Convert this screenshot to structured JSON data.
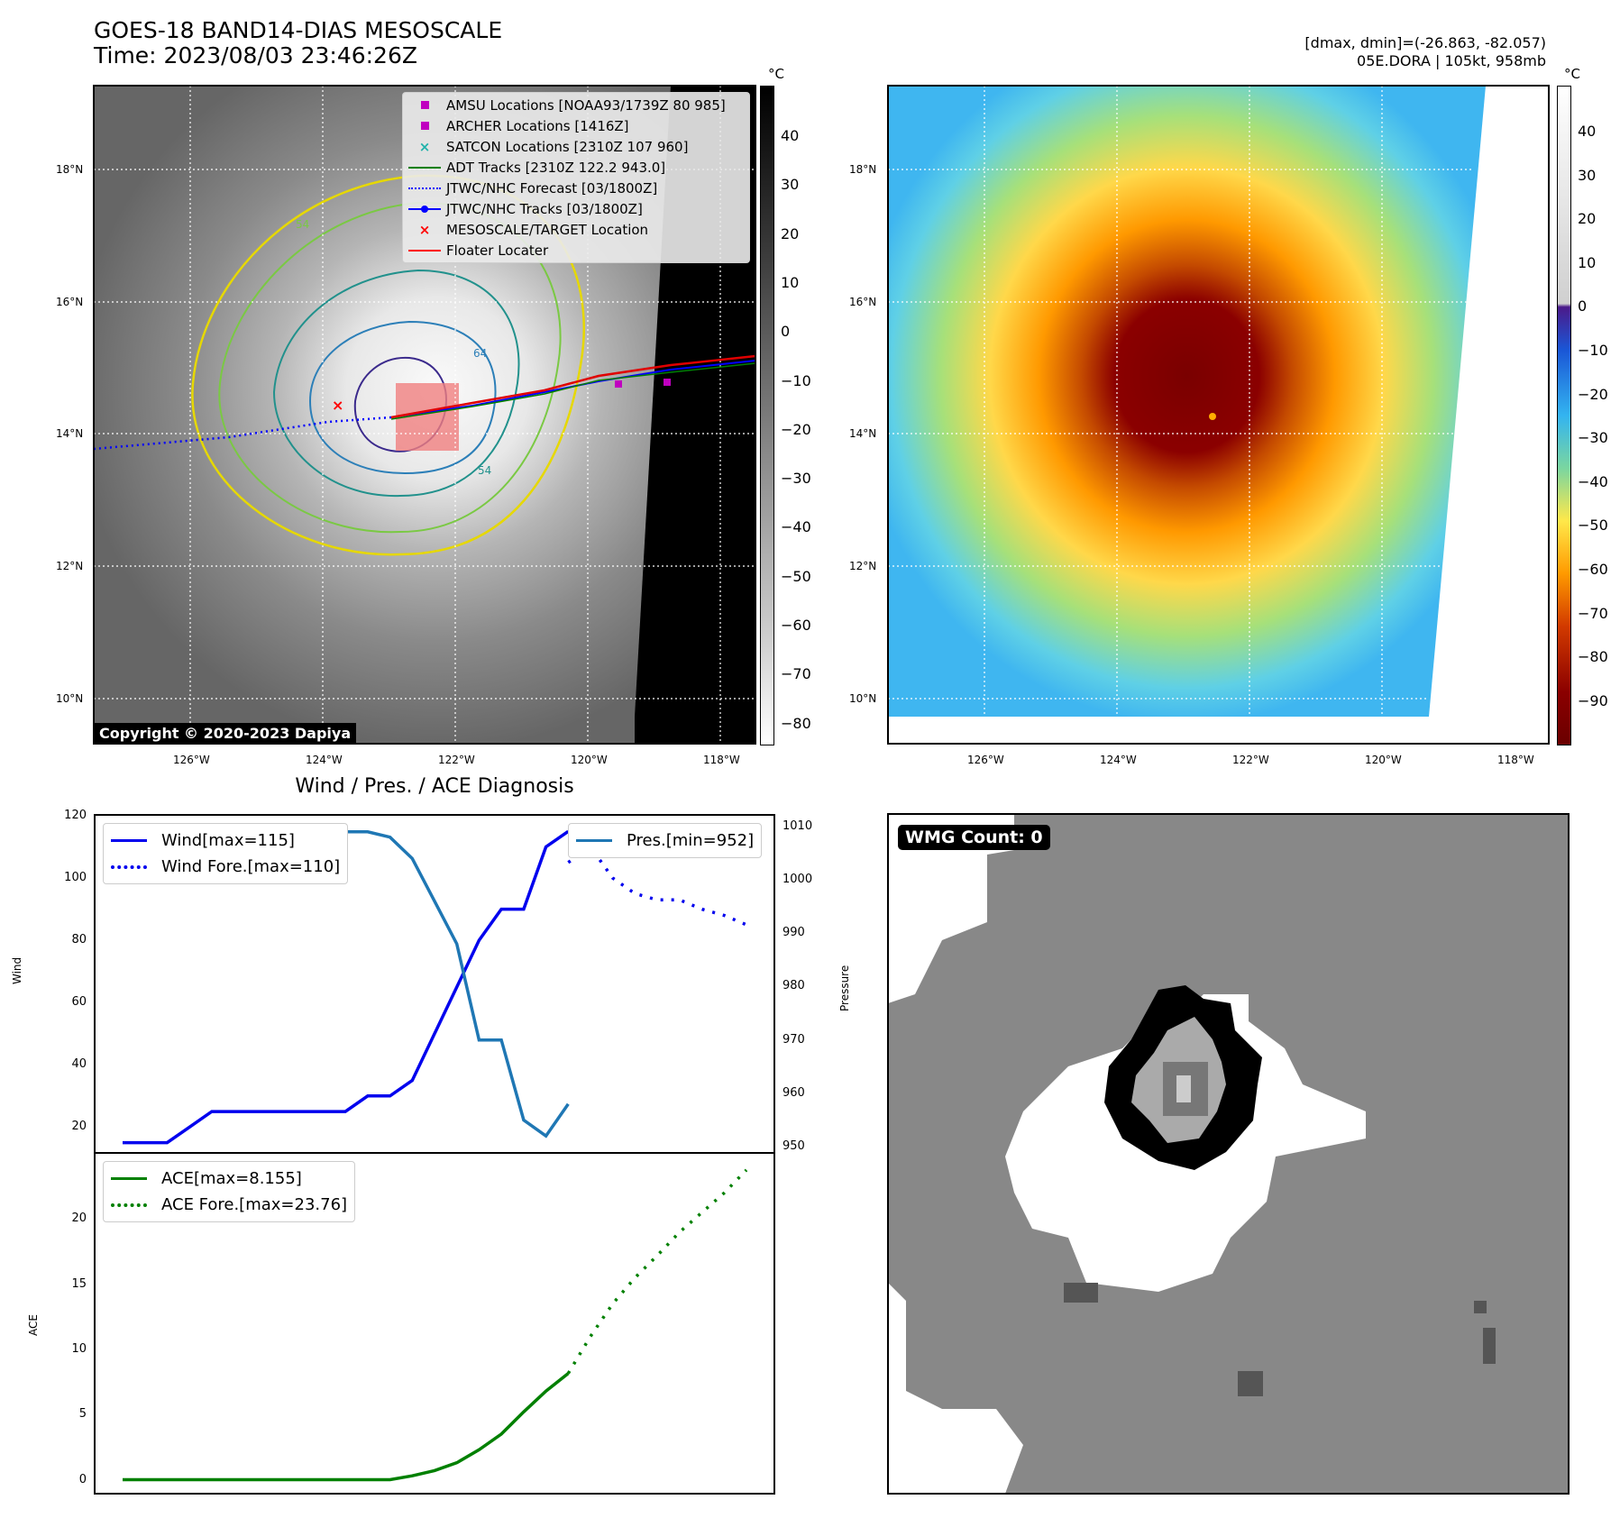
{
  "header": {
    "title_line1": "GOES-18 BAND14-DIAS MESOSCALE",
    "title_line2": "Time: 2023/08/03 23:46:26Z",
    "stats_line1": "[dmax, dmin]=(-26.863, -82.057)",
    "stats_line2": "05E.DORA | 105kt, 958mb"
  },
  "map_axes": {
    "lon_ticks": [
      "126°W",
      "124°W",
      "122°W",
      "120°W",
      "118°W"
    ],
    "lat_ticks": [
      "18°N",
      "16°N",
      "14°N",
      "12°N",
      "10°N"
    ]
  },
  "ir_panel": {
    "legend": [
      {
        "label": "AMSU Locations [NOAA93/1739Z 80 985]",
        "symbol": "square",
        "color": "#c000c0"
      },
      {
        "label": "ARCHER Locations [1416Z]",
        "symbol": "square",
        "color": "#c000c0"
      },
      {
        "label": "SATCON Locations [2310Z 107 960]",
        "symbol": "x",
        "color": "#20b2aa"
      },
      {
        "label": "ADT Tracks [2310Z 122.2 943.0]",
        "symbol": "line",
        "color": "#008000"
      },
      {
        "label": "JTWC/NHC Forecast [03/1800Z]",
        "symbol": "dotted",
        "color": "#0000ff"
      },
      {
        "label": "JTWC/NHC Tracks [03/1800Z]",
        "symbol": "line-dot",
        "color": "#0000ff"
      },
      {
        "label": "MESOSCALE/TARGET Location",
        "symbol": "x",
        "color": "#ff0000"
      },
      {
        "label": "Floater Locater",
        "symbol": "line",
        "color": "#ff0000"
      }
    ],
    "copyright": "Copyright © 2020-2023 Dapiya",
    "colorbar_unit": "°C",
    "colorbar_ticks": [
      "40",
      "30",
      "20",
      "10",
      "0",
      "−10",
      "−20",
      "−30",
      "−40",
      "−50",
      "−60",
      "−70",
      "−80"
    ],
    "contour_labels": [
      "54",
      "64",
      "54"
    ]
  },
  "color_panel": {
    "colorbar_unit": "°C",
    "colorbar_ticks": [
      "40",
      "30",
      "20",
      "10",
      "0",
      "−10",
      "−20",
      "−30",
      "−40",
      "−50",
      "−60",
      "−70",
      "−80",
      "−90"
    ]
  },
  "diagnosis_title": "Wind / Pres. / ACE Diagnosis",
  "wmg_panel": {
    "badge": "WMG Count: 0"
  },
  "chart_data": [
    {
      "type": "line",
      "title": "Wind / Pres. / ACE Diagnosis",
      "ylabel": "Wind",
      "y2label": "Pressure",
      "ylim": [
        12,
        120
      ],
      "y2lim": [
        949,
        1012
      ],
      "xlim": [
        0,
        28
      ],
      "y_ticks": [
        "20",
        "40",
        "60",
        "80",
        "100",
        "120"
      ],
      "y2_ticks": [
        "950",
        "960",
        "970",
        "980",
        "990",
        "1000",
        "1010"
      ],
      "series": [
        {
          "name": "Wind[max=115]",
          "color": "#0000ee",
          "style": "solid",
          "axis": "left",
          "x": [
            0,
            1,
            2,
            3,
            4,
            5,
            6,
            7,
            8,
            9,
            10,
            11,
            12,
            13,
            14,
            15,
            16,
            17,
            18,
            19,
            20
          ],
          "y": [
            15,
            15,
            15,
            20,
            25,
            25,
            25,
            25,
            25,
            25,
            25,
            30,
            30,
            35,
            50,
            65,
            80,
            90,
            90,
            110,
            115
          ]
        },
        {
          "name": "Wind Fore.[max=110]",
          "color": "#0000ee",
          "style": "dotted",
          "axis": "left",
          "x": [
            20,
            21,
            22,
            23,
            24,
            25,
            26,
            27,
            28
          ],
          "y": [
            105,
            110,
            100,
            95,
            93,
            93,
            90,
            88,
            85
          ]
        },
        {
          "name": "Pres.[min=952]",
          "color": "#1f77b4",
          "style": "solid",
          "axis": "right",
          "x": [
            0,
            1,
            2,
            3,
            4,
            5,
            6,
            7,
            8,
            9,
            10,
            11,
            12,
            13,
            14,
            15,
            16,
            17,
            18,
            19,
            20
          ],
          "y": [
            1010,
            1010,
            1010,
            1010,
            1009,
            1009,
            1009,
            1009,
            1009,
            1009,
            1009,
            1009,
            1008,
            1004,
            996,
            988,
            970,
            970,
            955,
            952,
            958
          ]
        }
      ]
    },
    {
      "type": "line",
      "ylabel": "ACE",
      "ylim": [
        -1,
        25
      ],
      "xlim": [
        0,
        28
      ],
      "y_ticks": [
        "0",
        "5",
        "10",
        "15",
        "20"
      ],
      "series": [
        {
          "name": "ACE[max=8.155]",
          "color": "#008000",
          "style": "solid",
          "x": [
            0,
            2,
            4,
            6,
            8,
            10,
            12,
            13,
            14,
            15,
            16,
            17,
            18,
            19,
            20
          ],
          "y": [
            0,
            0,
            0,
            0,
            0,
            0,
            0,
            0.3,
            0.7,
            1.3,
            2.3,
            3.5,
            5.2,
            6.8,
            8.155
          ]
        },
        {
          "name": "ACE Fore.[max=23.76]",
          "color": "#008000",
          "style": "dotted",
          "x": [
            20,
            21,
            22,
            23,
            24,
            25,
            26,
            27,
            28
          ],
          "y": [
            8.155,
            11,
            13.5,
            15.5,
            17.2,
            19,
            20.5,
            22,
            23.76
          ]
        }
      ]
    }
  ]
}
